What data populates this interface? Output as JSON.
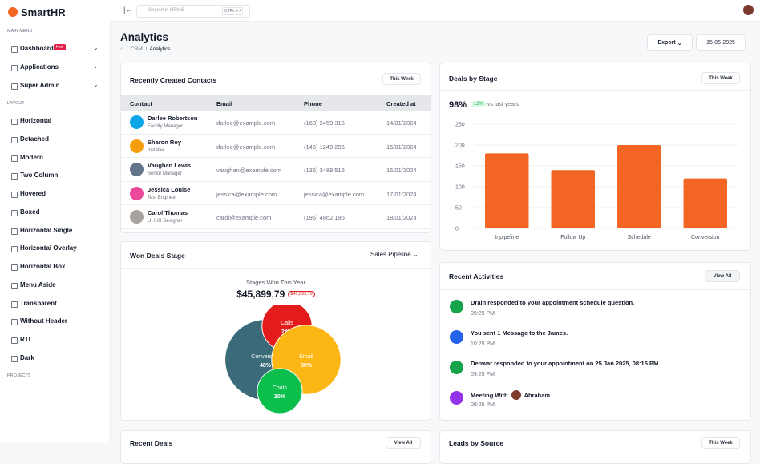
{
  "sidebar": {
    "logo": "SmartHR",
    "main_menu_label": "MAIN MENU",
    "main_menu": [
      {
        "label": "Dashboard",
        "badge": "Hot"
      },
      {
        "label": "Applications"
      },
      {
        "label": "Super Admin"
      }
    ],
    "layout_label": "LAYOUT",
    "layout_items": [
      "Horizontal",
      "Detached",
      "Modern",
      "Two Column",
      "Hovered",
      "Boxed",
      "Horizontal Single",
      "Horizontal Overlay",
      "Horizontal Box",
      "Menu Aside",
      "Transparent",
      "Without Header",
      "RTL",
      "Dark"
    ],
    "projects_label": "PROJECTS"
  },
  "topbar": {
    "search_placeholder": "Search in HRMS",
    "shortcut": "CTRL + /"
  },
  "header": {
    "title": "Analytics",
    "breadcrumb": [
      "CRM",
      "Analytics"
    ],
    "export": "Export",
    "date": "15-05-2025"
  },
  "contacts": {
    "title": "Recently Created Contacts",
    "filter": "This Week",
    "columns": [
      "Contact",
      "Email",
      "Phone",
      "Created at"
    ],
    "rows": [
      {
        "name": "Darlee Robertson",
        "role": "Facility Manager",
        "email": "darlee@example.com",
        "phone": "(163) 2459 315",
        "created": "14/01/2024"
      },
      {
        "name": "Sharon Roy",
        "role": "Installer",
        "email": "darlee@example.com",
        "phone": "(146) 1249 296",
        "created": "15/01/2024"
      },
      {
        "name": "Vaughan Lewis",
        "role": "Senior Manager",
        "email": "vaughan@example.com",
        "phone": "(135) 3489 516",
        "created": "16/01/2024"
      },
      {
        "name": "Jessica Louise",
        "role": "Test Engineer",
        "email": "jessica@example.com",
        "phone": "jessica@example.com",
        "created": "17/01/2024"
      },
      {
        "name": "Carol Thomas",
        "role": "UI /UX Designer",
        "email": "carol@example.com",
        "phone": "(196) 4862 196",
        "created": "18/01/2024"
      }
    ]
  },
  "deals_summary": {
    "filter": "This Week",
    "percent": "98%",
    "change": "12%",
    "change_text": "vs last years"
  },
  "won_deals": {
    "title": "Won Deals Stage",
    "filter": "Sales Pipeline",
    "amount": "$45,899,79",
    "badge": "$45,899,79"
  },
  "activities": {
    "title": "Recent Activities",
    "action": "View All",
    "items": [
      {
        "text": "Drain responded to your appointment schedule question.",
        "time": "09:25 PM"
      },
      {
        "text": "You sent 1 Message to the James.",
        "time": "10:25 PM"
      },
      {
        "text": "Denwar responded to your appointment on 25 Jan 2025, 08:15 PM",
        "time": "09:25 PM"
      },
      {
        "text": "Meeting With",
        "person": "Abraham",
        "time": "09:25 PM"
      }
    ]
  },
  "bottom_cards": [
    {
      "title": "Recent Deals",
      "action": "View All"
    },
    {
      "title": "Leads by Source",
      "action": "This Week"
    }
  ],
  "chart_data": [
    {
      "type": "bar",
      "title": "Deals by Stage",
      "categories": [
        "Inpipeline",
        "Follow Up",
        "Schedule",
        "Conversion"
      ],
      "values": [
        180,
        140,
        200,
        120
      ],
      "color": "#f26522",
      "ylim": [
        0,
        250
      ],
      "yticks": [
        0,
        50,
        100,
        150,
        200,
        250
      ],
      "grid": true
    },
    {
      "type": "bubble",
      "title": "Stages Won This Year",
      "categories": [
        "Calls",
        "Conversion",
        "Email",
        "Chats"
      ],
      "values": [
        24,
        48,
        39,
        20
      ],
      "value_labels": [
        "24%",
        "48%",
        "39%",
        "20%"
      ],
      "colors": [
        "#e41b1b",
        "#3b6b78",
        "#fdb714",
        "#0cbf4d"
      ]
    }
  ]
}
